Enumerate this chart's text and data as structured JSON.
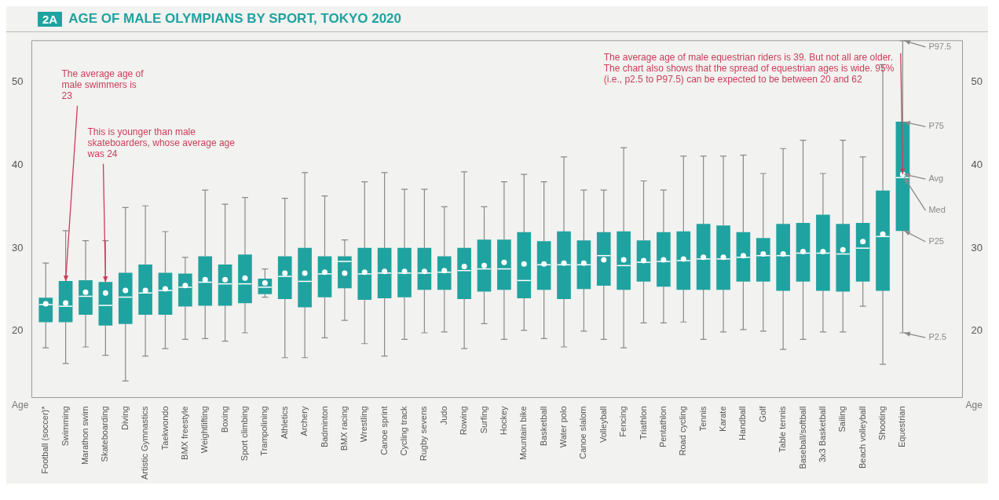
{
  "chart_data": {
    "type": "box",
    "title": "AGE OF MALE OLYMPIANS BY SPORT, TOKYO 2020",
    "ylabel": "Age",
    "y2label": "Age",
    "categories": [
      "Football (soccer)*",
      "Swimming",
      "Marathon swim",
      "Skateboarding",
      "Diving",
      "Artistic Gymnastics",
      "Taekwondo",
      "BMX freestyle",
      "Weightlifting",
      "Boxing",
      "Sport climbing",
      "Trampolining",
      "Athletics",
      "Archery",
      "Badminton",
      "BMX racing",
      "Wrestling",
      "Canoe sprint",
      "Cycling track",
      "Rugby sevens",
      "Judo",
      "Rowing",
      "Surfing",
      "Hockey",
      "Mountain bike",
      "Basketball",
      "Water polo",
      "Canoe slalom",
      "Volleyball",
      "Fencing",
      "Triathlon",
      "Pentathlon",
      "Road cycling",
      "Tennis",
      "Karate",
      "Handball",
      "Golf",
      "Table tennis",
      "Baseball/softball",
      "3x3 Basketball",
      "Sailing",
      "Beach volleyball",
      "Shooting",
      "Equestrian"
    ],
    "color": "#1fa3a0",
    "boxes": [
      {
        "low": 18.0,
        "q1": 21.1,
        "median": 23.2,
        "q3": 24.0,
        "high": 28.2,
        "mean": 23.3
      },
      {
        "low": 16.1,
        "q1": 21.1,
        "median": 23.0,
        "q3": 26.0,
        "high": 32.1,
        "mean": 23.4
      },
      {
        "low": 18.1,
        "q1": 22.0,
        "median": 24.2,
        "q3": 26.1,
        "high": 30.9,
        "mean": 24.7
      },
      {
        "low": 17.1,
        "q1": 20.7,
        "median": 23.1,
        "q3": 25.9,
        "high": 30.9,
        "mean": 24.6
      },
      {
        "low": 14.0,
        "q1": 20.9,
        "median": 24.1,
        "q3": 27.0,
        "high": 34.9,
        "mean": 24.9
      },
      {
        "low": 17.0,
        "q1": 22.0,
        "median": 24.6,
        "q3": 28.0,
        "high": 35.1,
        "mean": 24.9
      },
      {
        "low": 17.9,
        "q1": 22.0,
        "median": 24.9,
        "q3": 27.0,
        "high": 32.0,
        "mean": 25.1
      },
      {
        "low": 19.0,
        "q1": 23.0,
        "median": 25.3,
        "q3": 26.9,
        "high": 28.9,
        "mean": 25.5
      },
      {
        "low": 19.1,
        "q1": 23.1,
        "median": 25.9,
        "q3": 29.0,
        "high": 37.0,
        "mean": 26.2
      },
      {
        "low": 18.8,
        "q1": 23.1,
        "median": 25.7,
        "q3": 28.0,
        "high": 35.3,
        "mean": 26.2
      },
      {
        "low": 19.8,
        "q1": 23.4,
        "median": 25.7,
        "q3": 29.2,
        "high": 36.1,
        "mean": 26.4
      },
      {
        "low": 24.1,
        "q1": 24.5,
        "median": 25.3,
        "q3": 26.3,
        "high": 27.5,
        "mean": 25.8
      },
      {
        "low": 16.8,
        "q1": 23.9,
        "median": 26.6,
        "q3": 29.0,
        "high": 36.0,
        "mean": 27.0
      },
      {
        "low": 16.8,
        "q1": 22.9,
        "median": 26.0,
        "q3": 30.0,
        "high": 39.1,
        "mean": 27.0
      },
      {
        "low": 19.2,
        "q1": 24.1,
        "median": 26.9,
        "q3": 29.0,
        "high": 36.3,
        "mean": 27.1
      },
      {
        "low": 21.3,
        "q1": 25.2,
        "median": 28.4,
        "q3": 29.0,
        "high": 31.0,
        "mean": 27.0
      },
      {
        "low": 18.5,
        "q1": 23.8,
        "median": 26.9,
        "q3": 30.0,
        "high": 38.0,
        "mean": 27.1
      },
      {
        "low": 17.0,
        "q1": 24.0,
        "median": 27.0,
        "q3": 30.0,
        "high": 39.1,
        "mean": 27.2
      },
      {
        "low": 19.0,
        "q1": 24.1,
        "median": 27.0,
        "q3": 30.0,
        "high": 37.1,
        "mean": 27.2
      },
      {
        "low": 19.8,
        "q1": 25.0,
        "median": 27.0,
        "q3": 30.0,
        "high": 37.1,
        "mean": 27.2
      },
      {
        "low": 19.9,
        "q1": 25.0,
        "median": 27.1,
        "q3": 29.0,
        "high": 35.0,
        "mean": 27.3
      },
      {
        "low": 17.9,
        "q1": 23.9,
        "median": 27.3,
        "q3": 30.0,
        "high": 39.2,
        "mean": 27.8
      },
      {
        "low": 20.9,
        "q1": 24.8,
        "median": 27.5,
        "q3": 31.0,
        "high": 35.0,
        "mean": 27.9
      },
      {
        "low": 19.0,
        "q1": 25.0,
        "median": 27.5,
        "q3": 31.0,
        "high": 38.0,
        "mean": 28.3
      },
      {
        "low": 20.1,
        "q1": 24.0,
        "median": 26.1,
        "q3": 31.9,
        "high": 38.9,
        "mean": 28.1
      },
      {
        "low": 19.1,
        "q1": 25.0,
        "median": 28.0,
        "q3": 30.8,
        "high": 38.0,
        "mean": 28.1
      },
      {
        "low": 18.1,
        "q1": 23.9,
        "median": 28.0,
        "q3": 32.0,
        "high": 41.0,
        "mean": 28.2
      },
      {
        "low": 20.0,
        "q1": 25.1,
        "median": 28.0,
        "q3": 30.9,
        "high": 37.0,
        "mean": 28.2
      },
      {
        "low": 19.0,
        "q1": 25.5,
        "median": 29.1,
        "q3": 31.9,
        "high": 37.0,
        "mean": 28.6
      },
      {
        "low": 18.0,
        "q1": 25.0,
        "median": 27.9,
        "q3": 32.0,
        "high": 42.1,
        "mean": 28.6
      },
      {
        "low": 21.0,
        "q1": 26.0,
        "median": 28.3,
        "q3": 30.9,
        "high": 38.1,
        "mean": 28.5
      },
      {
        "low": 21.0,
        "q1": 25.4,
        "median": 28.4,
        "q3": 31.9,
        "high": 37.0,
        "mean": 28.6
      },
      {
        "low": 21.1,
        "q1": 25.0,
        "median": 28.5,
        "q3": 32.0,
        "high": 41.1,
        "mean": 28.7
      },
      {
        "low": 19.0,
        "q1": 25.0,
        "median": 28.7,
        "q3": 32.9,
        "high": 41.1,
        "mean": 28.9
      },
      {
        "low": 19.9,
        "q1": 25.0,
        "median": 28.7,
        "q3": 32.7,
        "high": 41.1,
        "mean": 28.9
      },
      {
        "low": 20.2,
        "q1": 26.0,
        "median": 28.9,
        "q3": 31.9,
        "high": 41.2,
        "mean": 29.1
      },
      {
        "low": 20.0,
        "q1": 26.0,
        "median": 29.1,
        "q3": 31.2,
        "high": 39.0,
        "mean": 29.3
      },
      {
        "low": 17.8,
        "q1": 24.9,
        "median": 29.1,
        "q3": 32.9,
        "high": 42.0,
        "mean": 29.3
      },
      {
        "low": 19.0,
        "q1": 26.0,
        "median": 29.4,
        "q3": 33.0,
        "high": 43.0,
        "mean": 29.6
      },
      {
        "low": 19.9,
        "q1": 24.9,
        "median": 29.4,
        "q3": 34.0,
        "high": 39.0,
        "mean": 29.6
      },
      {
        "low": 19.9,
        "q1": 24.8,
        "median": 29.3,
        "q3": 32.9,
        "high": 43.0,
        "mean": 29.8
      },
      {
        "low": 23.0,
        "q1": 26.0,
        "median": 30.0,
        "q3": 33.0,
        "high": 41.0,
        "mean": 30.8
      },
      {
        "low": 16.0,
        "q1": 24.9,
        "median": 31.4,
        "q3": 36.9,
        "high": 52.1,
        "mean": 31.7
      },
      {
        "low": 19.8,
        "q1": 32.1,
        "median": 38.5,
        "q3": 45.2,
        "high": 55,
        "mean": 38.9
      }
    ],
    "ylim": [
      12,
      55
    ],
    "yticks": [
      20,
      30,
      40,
      50
    ],
    "y2lim": [
      12,
      55
    ],
    "y2ticks": [
      20,
      30,
      40,
      50
    ],
    "annotations": [
      "2A",
      {
        "text": "The average age of male swimmers is 23",
        "x": "Swimming",
        "y": 26.0
      },
      {
        "text": "This is younger than male skateboarders, whose average age was 24",
        "x": "Skateboarding",
        "y": 25.9
      },
      {
        "text": "The average age of male equestrian riders is 39. But not all are older. The chart also shows that the spread of equestrian ages is wide. 95% (i.e., p2.5 to P97.5) can be expected to be between 20 and 62",
        "x": "Equestrian",
        "y": 38.9
      },
      {
        "text": "P97.5",
        "x": "Equestrian",
        "y": 55
      },
      {
        "text": "P75",
        "x": "Equestrian",
        "y": 45.2
      },
      {
        "text": "Avg",
        "x": "Equestrian",
        "y": 38.9
      },
      {
        "text": "Med",
        "x": "Equestrian",
        "y": 38.5
      },
      {
        "text": "P25",
        "x": "Equestrian",
        "y": 32.1
      },
      {
        "text": "P2.5",
        "x": "Equestrian",
        "y": 19.8
      }
    ]
  }
}
